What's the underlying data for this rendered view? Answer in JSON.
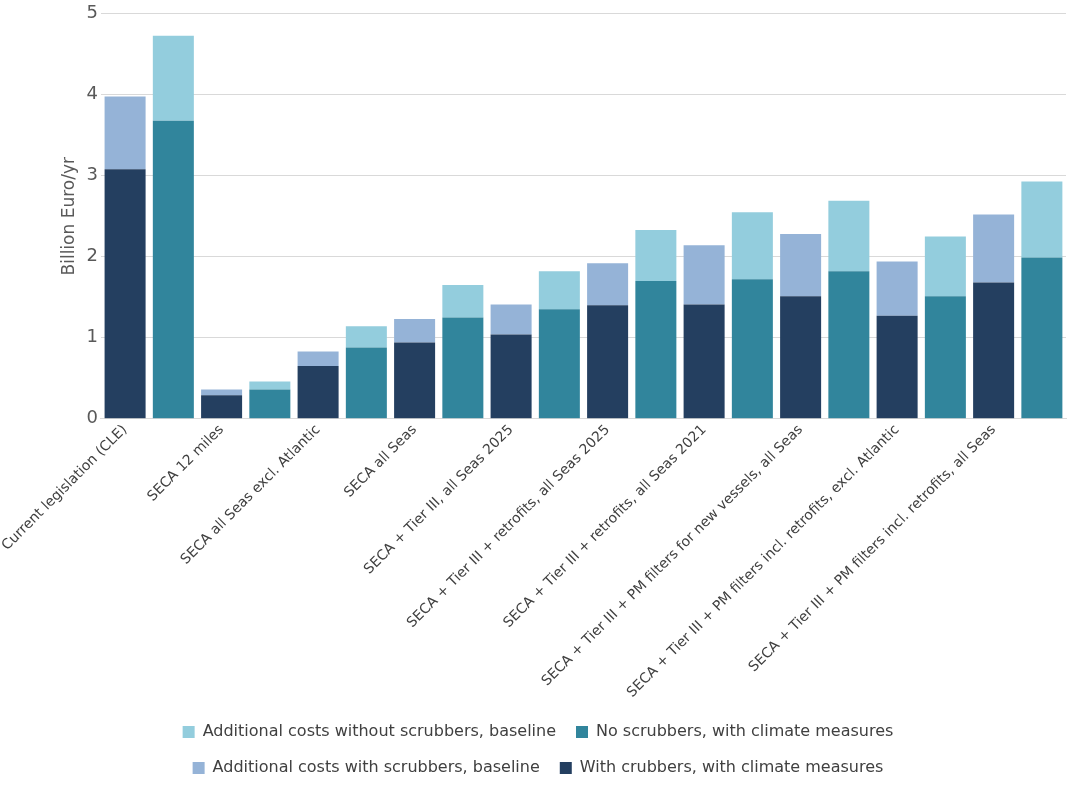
{
  "chart_data": {
    "type": "bar",
    "ylabel": "Billion Euro/yr",
    "stacked": true,
    "grid": "y",
    "legend": "bottom",
    "ylim": [
      0,
      5
    ],
    "yticks": [
      0,
      1,
      2,
      3,
      4,
      5
    ],
    "categories": [
      "Current legislation (CLE)",
      null,
      "SECA 12 miles",
      null,
      "SECA all Seas excl. Atlantic",
      null,
      "SECA all Seas",
      null,
      "SECA + Tier III, all Seas 2025",
      null,
      "SECA + Tier III + retrofits, all Seas 2025",
      null,
      "SECA + Tier III + retrofits, all Seas 2021",
      null,
      "SECA + Tier III + PM filters for new vessels, all Seas",
      null,
      "SECA + Tier III + PM filters incl. retrofits, excl. Atlantic",
      null,
      "SECA + Tier III + PM filters incl. retrofits, all Seas",
      null
    ],
    "series": [
      {
        "name": "With crubbers, with climate measures",
        "color": "#243f60",
        "values": [
          3.08,
          null,
          0.29,
          null,
          0.65,
          null,
          0.94,
          null,
          1.04,
          null,
          1.4,
          null,
          1.41,
          null,
          1.51,
          null,
          1.27,
          null,
          1.68,
          null
        ]
      },
      {
        "name": "Additional costs with scrubbers, baseline",
        "color": "#95b3d7",
        "values": [
          0.9,
          null,
          0.07,
          null,
          0.18,
          null,
          0.29,
          null,
          0.37,
          null,
          0.52,
          null,
          0.73,
          null,
          0.77,
          null,
          0.67,
          null,
          0.84,
          null
        ]
      },
      {
        "name": "No scrubbers, with climate measures",
        "color": "#31859c",
        "values": [
          null,
          3.68,
          null,
          0.36,
          null,
          0.88,
          null,
          1.25,
          null,
          1.35,
          null,
          1.7,
          null,
          1.72,
          null,
          1.82,
          null,
          1.51,
          null,
          1.99
        ]
      },
      {
        "name": "Additional costs without scrubbers, baseline",
        "color": "#93cddd",
        "values": [
          null,
          1.05,
          null,
          0.1,
          null,
          0.26,
          null,
          0.4,
          null,
          0.47,
          null,
          0.63,
          null,
          0.83,
          null,
          0.87,
          null,
          0.74,
          null,
          0.94
        ]
      }
    ]
  }
}
